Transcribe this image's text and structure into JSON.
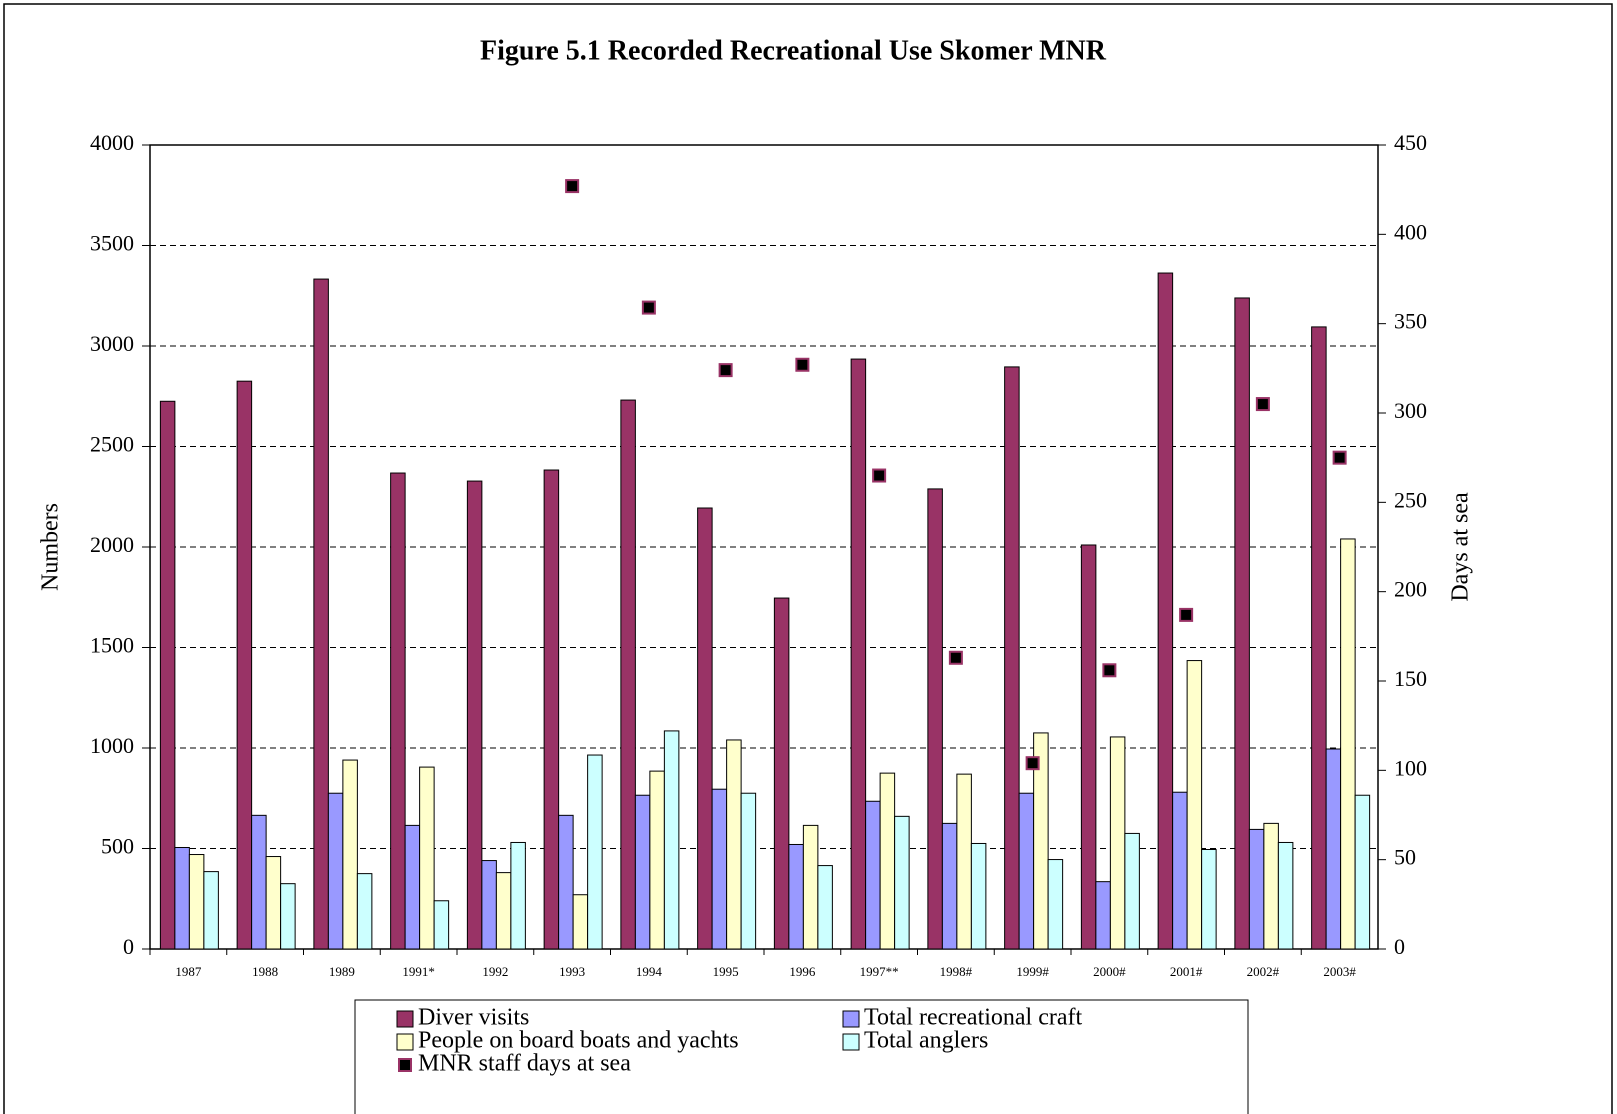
{
  "chart_data": {
    "type": "bar",
    "title": "Figure 5.1 Recorded Recreational Use Skomer MNR",
    "y_label": "Numbers",
    "y2_label": "Days at sea",
    "categories": [
      "1987",
      "1988",
      "1989",
      "1991*",
      "1992",
      "1993",
      "1994",
      "1995",
      "1996",
      "1997**",
      "1998#",
      "1999#",
      "2000#",
      "2001#",
      "2002#",
      "2003#"
    ],
    "series": [
      {
        "name": "Diver visits",
        "type": "bar",
        "color": "#993366",
        "values": [
          2725,
          2825,
          3333,
          2368,
          2328,
          2383,
          2731,
          2194,
          1746,
          2935,
          2289,
          2896,
          2010,
          3363,
          3239,
          3095
        ]
      },
      {
        "name": "Total recreational craft",
        "type": "bar",
        "color": "#9999ff",
        "values": [
          505,
          665,
          775,
          615,
          440,
          665,
          765,
          795,
          520,
          735,
          625,
          775,
          335,
          780,
          595,
          995
        ]
      },
      {
        "name": "People on board boats and yachts",
        "type": "bar",
        "color": "#ffffcc",
        "values": [
          470,
          460,
          940,
          905,
          380,
          270,
          885,
          1040,
          615,
          875,
          870,
          1075,
          1055,
          1435,
          625,
          2040
        ]
      },
      {
        "name": "Total anglers",
        "type": "bar",
        "color": "#ccffff",
        "values": [
          385,
          325,
          375,
          240,
          530,
          965,
          1085,
          775,
          415,
          660,
          525,
          445,
          575,
          495,
          530,
          765
        ]
      },
      {
        "name": "MNR staff days at sea",
        "type": "scatter",
        "axis": "y2",
        "color": "#000000",
        "edge_color": "#993366",
        "values": [
          null,
          null,
          null,
          null,
          null,
          427,
          359,
          324,
          327,
          265,
          163,
          104,
          156,
          187,
          305,
          275
        ]
      }
    ],
    "ylim": [
      0,
      4000
    ],
    "yticks": [
      0,
      500,
      1000,
      1500,
      2000,
      2500,
      3000,
      3500,
      4000
    ],
    "y2lim": [
      0,
      450
    ],
    "y2ticks": [
      0,
      50,
      100,
      150,
      200,
      250,
      300,
      350,
      400,
      450
    ],
    "grid": true
  }
}
